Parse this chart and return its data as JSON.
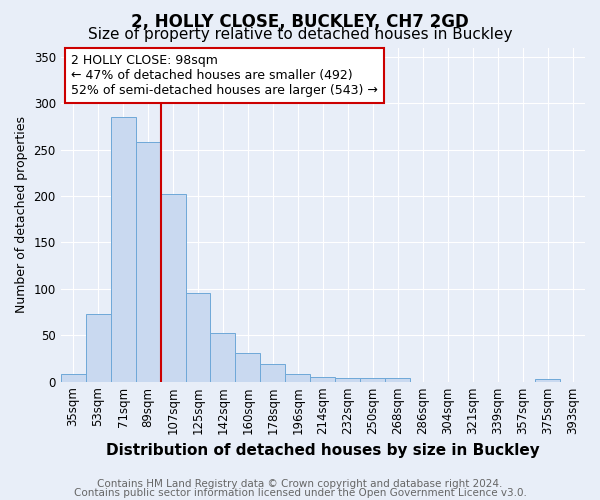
{
  "title1": "2, HOLLY CLOSE, BUCKLEY, CH7 2GD",
  "title2": "Size of property relative to detached houses in Buckley",
  "xlabel": "Distribution of detached houses by size in Buckley",
  "ylabel": "Number of detached properties",
  "categories": [
    "35sqm",
    "53sqm",
    "71sqm",
    "89sqm",
    "107sqm",
    "125sqm",
    "142sqm",
    "160sqm",
    "178sqm",
    "196sqm",
    "214sqm",
    "232sqm",
    "250sqm",
    "268sqm",
    "286sqm",
    "304sqm",
    "321sqm",
    "339sqm",
    "357sqm",
    "375sqm",
    "393sqm"
  ],
  "values": [
    8,
    73,
    285,
    258,
    202,
    95,
    52,
    31,
    19,
    8,
    5,
    4,
    4,
    4,
    0,
    0,
    0,
    0,
    0,
    3,
    0
  ],
  "bar_color": "#c9d9f0",
  "bar_edge_color": "#6ea8d8",
  "vline_color": "#cc0000",
  "vline_x": 4.0,
  "annotation_line1": "2 HOLLY CLOSE: 98sqm",
  "annotation_line2": "← 47% of detached houses are smaller (492)",
  "annotation_line3": "52% of semi-detached houses are larger (543) →",
  "annotation_box_color": "#ffffff",
  "annotation_box_edge": "#cc0000",
  "footer1": "Contains HM Land Registry data © Crown copyright and database right 2024.",
  "footer2": "Contains public sector information licensed under the Open Government Licence v3.0.",
  "ylim": [
    0,
    360
  ],
  "yticks": [
    0,
    50,
    100,
    150,
    200,
    250,
    300,
    350
  ],
  "background_color": "#e8eef8",
  "grid_color": "#ffffff",
  "title1_fontsize": 12,
  "title2_fontsize": 11,
  "xlabel_fontsize": 11,
  "ylabel_fontsize": 9,
  "tick_fontsize": 8.5,
  "footer_fontsize": 7.5,
  "annotation_fontsize": 9
}
